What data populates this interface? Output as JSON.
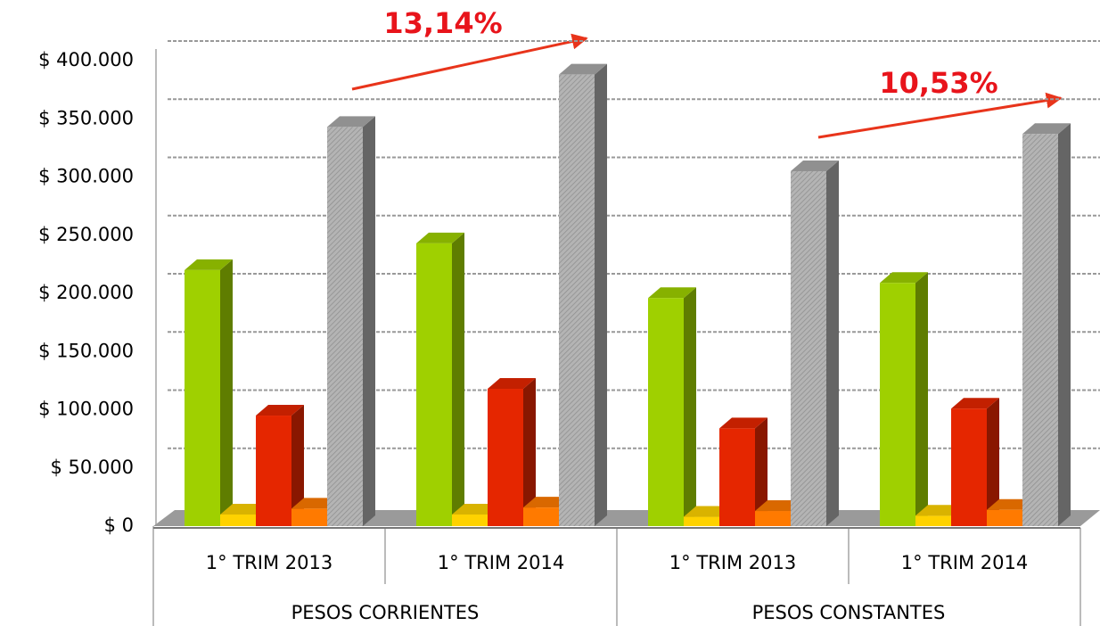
{
  "chart_data": {
    "type": "bar3d",
    "categories": [
      "1° TRIM 2013",
      "1° TRIM 2014",
      "1° TRIM 2013",
      "1° TRIM 2014"
    ],
    "groups": [
      "PESOS CORRIENTES",
      "PESOS CONSTANTES"
    ],
    "series": [
      {
        "color": "#9fd000",
        "values": [
          220000,
          243000,
          196000,
          209000
        ]
      },
      {
        "color": "#ffd200",
        "values": [
          10000,
          10000,
          8000,
          9000
        ]
      },
      {
        "color": "#e52600",
        "values": [
          95000,
          118000,
          84000,
          101000
        ]
      },
      {
        "color": "#ff7a00",
        "values": [
          15000,
          16000,
          13000,
          14000
        ]
      },
      {
        "color": "#a9a9a9",
        "values": [
          343000,
          388000,
          305000,
          337000
        ]
      }
    ],
    "ylim": [
      0,
      400000
    ],
    "yticks": [
      {
        "value": 0,
        "label": "$ 0"
      },
      {
        "value": 50000,
        "label": "$ 50.000"
      },
      {
        "value": 100000,
        "label": "$ 100.000"
      },
      {
        "value": 150000,
        "label": "$ 150.000"
      },
      {
        "value": 200000,
        "label": "$ 200.000"
      },
      {
        "value": 250000,
        "label": "$ 250.000"
      },
      {
        "value": 300000,
        "label": "$ 300.000"
      },
      {
        "value": 350000,
        "label": "$ 350.000"
      },
      {
        "value": 400000,
        "label": "$ 400.000"
      }
    ],
    "grid": true,
    "annotations": [
      "13,14%",
      "10,53%"
    ]
  }
}
